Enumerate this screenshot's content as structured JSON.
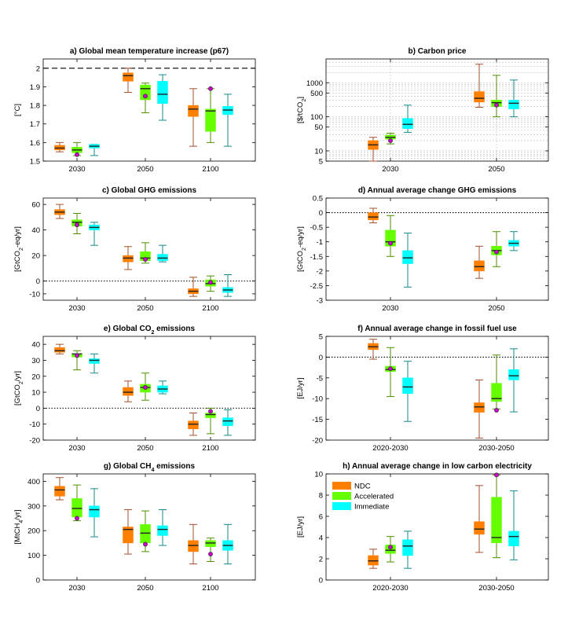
{
  "colors": {
    "NDC": "#ff7f00",
    "Accelerated": "#66ff00",
    "Immediate": "#00ffff",
    "NDC_line": "#a0522d",
    "Accelerated_line": "#4f8f00",
    "Immediate_line": "#168a8a",
    "marker": "#cc00cc"
  },
  "chart_data": [
    {
      "id": "a",
      "type": "box",
      "title": "a) Global mean temperature increase (p67)",
      "ylabel": "[°C]",
      "ylim": [
        1.5,
        2.05
      ],
      "yticks": [
        "1.5",
        "1.6",
        "1.7",
        "1.8",
        "1.9",
        "2"
      ],
      "categories": [
        "2030",
        "2050",
        "2100"
      ],
      "hline": {
        "value": 2.0,
        "style": "dashed"
      },
      "series": [
        {
          "name": "NDC",
          "boxes": [
            {
              "min": 1.55,
              "q1": 1.56,
              "median": 1.57,
              "q3": 1.585,
              "max": 1.6
            },
            {
              "min": 1.87,
              "q1": 1.93,
              "median": 1.96,
              "q3": 1.975,
              "max": 2.0
            },
            {
              "min": 1.58,
              "q1": 1.74,
              "median": 1.78,
              "q3": 1.8,
              "max": 1.89
            }
          ]
        },
        {
          "name": "Accelerated",
          "boxes": [
            {
              "min": 1.53,
              "q1": 1.545,
              "median": 1.56,
              "q3": 1.575,
              "max": 1.6,
              "marker": 1.535
            },
            {
              "min": 1.76,
              "q1": 1.83,
              "median": 1.89,
              "q3": 1.91,
              "max": 1.92,
              "marker": 1.85
            },
            {
              "min": 1.6,
              "q1": 1.66,
              "median": 1.77,
              "q3": 1.78,
              "max": 1.89,
              "marker": 1.89
            }
          ]
        },
        {
          "name": "Immediate",
          "boxes": [
            {
              "min": 1.53,
              "q1": 1.57,
              "median": 1.58,
              "q3": 1.59,
              "max": 1.59
            },
            {
              "min": 1.72,
              "q1": 1.81,
              "median": 1.86,
              "q3": 1.93,
              "max": 1.965
            },
            {
              "min": 1.58,
              "q1": 1.75,
              "median": 1.775,
              "q3": 1.795,
              "max": 1.86
            }
          ]
        }
      ]
    },
    {
      "id": "b",
      "type": "box",
      "yscale": "log",
      "title": "b) Carbon price",
      "ylabel": "[$/tCO2]",
      "ylim": [
        5,
        5000
      ],
      "yticks": [
        "5",
        "10",
        "50",
        "100",
        "500",
        "1000"
      ],
      "categories": [
        "2030",
        "2050"
      ],
      "series": [
        {
          "name": "NDC",
          "boxes": [
            {
              "min": 5,
              "q1": 11,
              "median": 15,
              "q3": 20,
              "max": 25
            },
            {
              "min": 190,
              "q1": 270,
              "median": 350,
              "q3": 550,
              "max": 3500
            }
          ]
        },
        {
          "name": "Accelerated",
          "boxes": [
            {
              "min": 16,
              "q1": 22,
              "median": 25,
              "q3": 29,
              "max": 33,
              "marker": 20
            },
            {
              "min": 100,
              "q1": 200,
              "median": 260,
              "q3": 310,
              "max": 1650,
              "marker": 220
            }
          ]
        },
        {
          "name": "Immediate",
          "boxes": [
            {
              "min": 35,
              "q1": 45,
              "median": 60,
              "q3": 90,
              "max": 220
            },
            {
              "min": 100,
              "q1": 170,
              "median": 250,
              "q3": 310,
              "max": 1200
            }
          ]
        }
      ]
    },
    {
      "id": "c",
      "type": "box",
      "title": "c) Global GHG emissions",
      "ylabel": "[GtCO2-eq/yr]",
      "ylim": [
        -15,
        65
      ],
      "yticks": [
        "-10",
        "0",
        "20",
        "40",
        "60"
      ],
      "categories": [
        "2030",
        "2050",
        "2100"
      ],
      "hline": {
        "value": 0,
        "style": "dotted"
      },
      "series": [
        {
          "name": "NDC",
          "boxes": [
            {
              "min": 49,
              "q1": 52,
              "median": 54,
              "q3": 56,
              "max": 60
            },
            {
              "min": 9,
              "q1": 15,
              "median": 18,
              "q3": 20,
              "max": 27
            },
            {
              "min": -12,
              "q1": -10,
              "median": -8,
              "q3": -6,
              "max": 3
            }
          ]
        },
        {
          "name": "Accelerated",
          "boxes": [
            {
              "min": 37,
              "q1": 43,
              "median": 46,
              "q3": 48,
              "max": 53,
              "marker": 44
            },
            {
              "min": 14,
              "q1": 16,
              "median": 18,
              "q3": 23,
              "max": 30,
              "marker": 17
            },
            {
              "min": -8,
              "q1": -4,
              "median": -2,
              "q3": 1,
              "max": 4,
              "marker": -1
            }
          ]
        },
        {
          "name": "Immediate",
          "boxes": [
            {
              "min": 28,
              "q1": 40,
              "median": 42,
              "q3": 44,
              "max": 46
            },
            {
              "min": 15,
              "q1": 16,
              "median": 18,
              "q3": 21,
              "max": 28
            },
            {
              "min": -12,
              "q1": -9,
              "median": -7,
              "q3": -5,
              "max": 5
            }
          ]
        }
      ]
    },
    {
      "id": "d",
      "type": "box",
      "title": "d) Annual average change GHG emissions",
      "ylabel": "[GtCO2-eq/yr]",
      "ylim": [
        -3,
        0.5
      ],
      "yticks": [
        "-3",
        "-2.5",
        "-2",
        "-1.5",
        "-1",
        "-0.5",
        "0",
        "0.5"
      ],
      "categories": [
        "2030",
        "2050"
      ],
      "hline": {
        "value": 0,
        "style": "dotted"
      },
      "series": [
        {
          "name": "NDC",
          "boxes": [
            {
              "min": -0.35,
              "q1": -0.25,
              "median": -0.15,
              "q3": 0.0,
              "max": 0.15
            },
            {
              "min": -2.25,
              "q1": -2.0,
              "median": -1.85,
              "q3": -1.65,
              "max": -1.15
            }
          ]
        },
        {
          "name": "Accelerated",
          "boxes": [
            {
              "min": -1.5,
              "q1": -1.15,
              "median": -1.0,
              "q3": -0.6,
              "max": -0.1,
              "marker": -1.05
            },
            {
              "min": -1.85,
              "q1": -1.45,
              "median": -1.3,
              "q3": -1.15,
              "max": -0.65,
              "marker": -1.35
            }
          ]
        },
        {
          "name": "Immediate",
          "boxes": [
            {
              "min": -2.55,
              "q1": -1.75,
              "median": -1.55,
              "q3": -1.3,
              "max": -0.7
            },
            {
              "min": -1.3,
              "q1": -1.15,
              "median": -1.05,
              "q3": -0.95,
              "max": -0.65
            }
          ]
        }
      ]
    },
    {
      "id": "e",
      "type": "box",
      "title": "e) Global CO2 emissions",
      "ylabel": "[GtCO2/yr]",
      "ylim": [
        -20,
        45
      ],
      "yticks": [
        "-20",
        "-10",
        "0",
        "10",
        "20",
        "30",
        "40"
      ],
      "categories": [
        "2030",
        "2050",
        "2100"
      ],
      "hline": {
        "value": 0,
        "style": "dotted"
      },
      "series": [
        {
          "name": "NDC",
          "boxes": [
            {
              "min": 34,
              "q1": 35,
              "median": 36,
              "q3": 38,
              "max": 40
            },
            {
              "min": 4,
              "q1": 8,
              "median": 10,
              "q3": 13,
              "max": 17
            },
            {
              "min": -17,
              "q1": -13,
              "median": -10,
              "q3": -8,
              "max": -3
            }
          ]
        },
        {
          "name": "Accelerated",
          "boxes": [
            {
              "min": 24,
              "q1": 32,
              "median": 34,
              "q3": 34,
              "max": 36,
              "marker": 33
            },
            {
              "min": 5,
              "q1": 10,
              "median": 13,
              "q3": 15,
              "max": 22,
              "marker": 13
            },
            {
              "min": -16,
              "q1": -6,
              "median": -4,
              "q3": -3,
              "max": 0,
              "marker": -2
            }
          ]
        },
        {
          "name": "Immediate",
          "boxes": [
            {
              "min": 22,
              "q1": 28,
              "median": 30,
              "q3": 31,
              "max": 34
            },
            {
              "min": 9,
              "q1": 10,
              "median": 12,
              "q3": 14,
              "max": 17
            },
            {
              "min": -17,
              "q1": -11,
              "median": -8,
              "q3": -6,
              "max": -1
            }
          ]
        }
      ]
    },
    {
      "id": "f",
      "type": "box",
      "title": "f) Annual average change in fossil fuel use",
      "ylabel": "[EJ/yr]",
      "ylim": [
        -20,
        5
      ],
      "yticks": [
        "-20",
        "-15",
        "-10",
        "-5",
        "0",
        "5"
      ],
      "categories": [
        "2020-2030",
        "2030-2050"
      ],
      "hline": {
        "value": 0,
        "style": "dotted"
      },
      "series": [
        {
          "name": "NDC",
          "boxes": [
            {
              "min": -0.5,
              "q1": 1.8,
              "median": 2.5,
              "q3": 3.3,
              "max": 4.3
            },
            {
              "min": -19.5,
              "q1": -13.3,
              "median": -12,
              "q3": -11,
              "max": -5.5
            }
          ]
        },
        {
          "name": "Accelerated",
          "boxes": [
            {
              "min": -9.5,
              "q1": -3.5,
              "median": -3.0,
              "q3": -2.2,
              "max": 2.3,
              "marker": -2.8
            },
            {
              "min": -12.5,
              "q1": -10.7,
              "median": -10,
              "q3": -6.3,
              "max": 0.5,
              "marker": -12.8
            }
          ]
        },
        {
          "name": "Immediate",
          "boxes": [
            {
              "min": -15.5,
              "q1": -8.8,
              "median": -7.2,
              "q3": -5.0,
              "max": -1.0
            },
            {
              "min": -13.2,
              "q1": -5.5,
              "median": -4.5,
              "q3": -3.0,
              "max": 2.0
            }
          ]
        }
      ]
    },
    {
      "id": "g",
      "type": "box",
      "title": "g) Global CH4 emissions",
      "ylabel": "[MtCH4/yr]",
      "ylim": [
        0,
        430
      ],
      "yticks": [
        "0",
        "100",
        "200",
        "300",
        "400"
      ],
      "categories": [
        "2030",
        "2050",
        "2100"
      ],
      "series": [
        {
          "name": "NDC",
          "boxes": [
            {
              "min": 325,
              "q1": 340,
              "median": 365,
              "q3": 380,
              "max": 415
            },
            {
              "min": 105,
              "q1": 150,
              "median": 205,
              "q3": 215,
              "max": 285
            },
            {
              "min": 65,
              "q1": 115,
              "median": 140,
              "q3": 160,
              "max": 225
            }
          ]
        },
        {
          "name": "Accelerated",
          "boxes": [
            {
              "min": 240,
              "q1": 255,
              "median": 290,
              "q3": 330,
              "max": 385,
              "marker": 250
            },
            {
              "min": 115,
              "q1": 150,
              "median": 190,
              "q3": 225,
              "max": 280,
              "marker": 145
            },
            {
              "min": 75,
              "q1": 135,
              "median": 150,
              "q3": 160,
              "max": 170,
              "marker": 105
            }
          ]
        },
        {
          "name": "Immediate",
          "boxes": [
            {
              "min": 175,
              "q1": 255,
              "median": 285,
              "q3": 300,
              "max": 370
            },
            {
              "min": 140,
              "q1": 180,
              "median": 205,
              "q3": 220,
              "max": 285
            },
            {
              "min": 65,
              "q1": 120,
              "median": 140,
              "q3": 160,
              "max": 225
            }
          ]
        }
      ]
    },
    {
      "id": "h",
      "type": "box",
      "title": "h) Annual average change in low carbon electricity",
      "ylabel": "[EJ/yr]",
      "ylim": [
        0,
        10
      ],
      "yticks": [
        "0",
        "2",
        "4",
        "6",
        "8",
        "10"
      ],
      "categories": [
        "2020-2030",
        "2030-2050"
      ],
      "legend": {
        "position": "top-left",
        "entries": [
          "NDC",
          "Accelerated",
          "Immediate"
        ]
      },
      "series": [
        {
          "name": "NDC",
          "boxes": [
            {
              "min": 1.1,
              "q1": 1.4,
              "median": 1.8,
              "q3": 2.3,
              "max": 2.9
            },
            {
              "min": 2.6,
              "q1": 4.3,
              "median": 4.8,
              "q3": 5.5,
              "max": 8.9
            }
          ]
        },
        {
          "name": "Accelerated",
          "boxes": [
            {
              "min": 1.7,
              "q1": 2.5,
              "median": 2.8,
              "q3": 3.3,
              "max": 4.1,
              "marker": 3.1
            },
            {
              "min": 2.1,
              "q1": 3.5,
              "median": 4.0,
              "q3": 7.8,
              "max": 9.9,
              "marker": 9.9
            }
          ]
        },
        {
          "name": "Immediate",
          "boxes": [
            {
              "min": 1.1,
              "q1": 2.3,
              "median": 3.2,
              "q3": 3.8,
              "max": 4.6
            },
            {
              "min": 1.9,
              "q1": 3.2,
              "median": 4.1,
              "q3": 4.6,
              "max": 8.4
            }
          ]
        }
      ]
    }
  ]
}
